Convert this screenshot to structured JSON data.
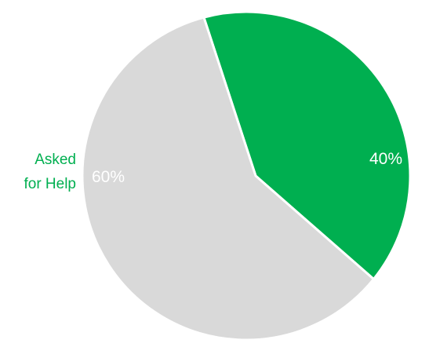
{
  "chart_data": {
    "type": "pie",
    "slices": [
      {
        "label": "Asked for Help",
        "label_lines": [
          "Asked",
          "for Help"
        ],
        "value": 40,
        "display": "40%",
        "color": "#00AF50",
        "text_color": "#ffffff",
        "category_color": "#00AF50"
      },
      {
        "label": "",
        "label_lines": [],
        "value": 60,
        "display": "60%",
        "color": "#D9D9D9",
        "text_color": "#ffffff",
        "category_color": "#D9D9D9"
      }
    ],
    "legend": "none",
    "grid": false
  }
}
